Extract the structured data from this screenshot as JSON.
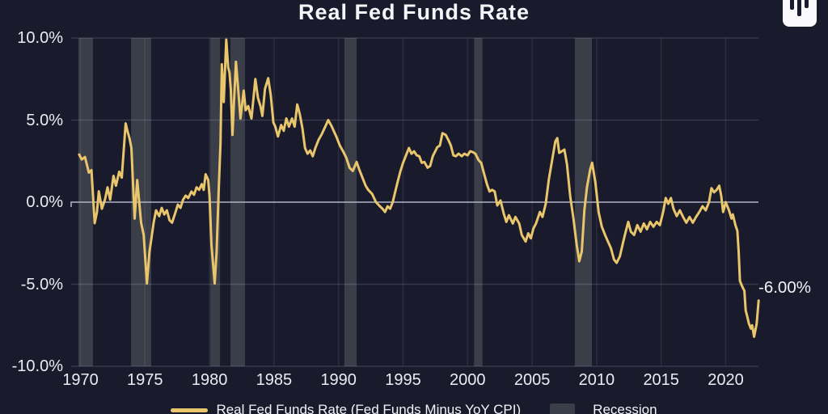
{
  "title": "Real Fed Funds Rate",
  "logo_icon": "bar-waveform-logo-icon",
  "colors": {
    "background": "#191B2C",
    "line": "#E9C66B",
    "recession": "#3A3E49",
    "zero_line": "#A9AEC0",
    "grid_horizontal": "rgba(205,210,230,0.17)",
    "grid_vertical": "rgba(205,210,230,0.10)",
    "text_primary": "#F4F5F8",
    "text_axis": "#EAECF2"
  },
  "legend": [
    {
      "label": "Real Fed Funds Rate (Fed Funds Minus YoY CPI)",
      "swatch": "line",
      "color": "#E9C66B"
    },
    {
      "label": "Recession",
      "swatch": "box",
      "color": "#3A3E49"
    }
  ],
  "chart_data": {
    "type": "line",
    "title": "Real Fed Funds Rate",
    "xlabel": "",
    "ylabel": "",
    "grid": true,
    "legend_position": "bottom",
    "xlim": [
      1969.3,
      2022.6
    ],
    "ylim": [
      -10,
      10
    ],
    "x_ticks": [
      "1970",
      "1975",
      "1980",
      "1985",
      "1990",
      "1995",
      "2000",
      "2005",
      "2010",
      "2015",
      "2020"
    ],
    "x_tick_years": [
      1970,
      1975,
      1980,
      1985,
      1990,
      1995,
      2000,
      2005,
      2010,
      2015,
      2020
    ],
    "y_ticks": [
      "10.0%",
      "5.0%",
      "0.0%",
      "-5.0%",
      "-10.0%"
    ],
    "y_tick_values": [
      10,
      5,
      0,
      -5,
      -10
    ],
    "last_value": -6.0,
    "last_value_label": "-6.00%",
    "recessions": [
      [
        1969.84,
        1970.97
      ],
      [
        1973.92,
        1975.48
      ],
      [
        1980.06,
        1980.81
      ],
      [
        1981.62,
        1982.75
      ],
      [
        1990.45,
        1991.4
      ],
      [
        2000.5,
        2001.15
      ],
      [
        2008.31,
        2009.63
      ]
    ],
    "series": [
      {
        "name": "Real Fed Funds Rate (Fed Funds Minus YoY CPI)",
        "color": "#E9C66B",
        "points": [
          [
            1969.9,
            2.9
          ],
          [
            1970.1,
            2.6
          ],
          [
            1970.35,
            2.75
          ],
          [
            1970.65,
            1.8
          ],
          [
            1970.85,
            1.95
          ],
          [
            1971.1,
            -1.28
          ],
          [
            1971.28,
            -0.6
          ],
          [
            1971.42,
            0.66
          ],
          [
            1971.66,
            -0.4
          ],
          [
            1971.9,
            0.15
          ],
          [
            1972.1,
            0.9
          ],
          [
            1972.3,
            0.15
          ],
          [
            1972.56,
            1.6
          ],
          [
            1972.75,
            1.0
          ],
          [
            1973.0,
            1.85
          ],
          [
            1973.2,
            1.5
          ],
          [
            1973.5,
            4.8
          ],
          [
            1973.65,
            4.3
          ],
          [
            1973.8,
            3.9
          ],
          [
            1973.95,
            3.3
          ],
          [
            1974.2,
            -1.0
          ],
          [
            1974.4,
            1.35
          ],
          [
            1974.7,
            -1.25
          ],
          [
            1974.9,
            -2.0
          ],
          [
            1975.15,
            -4.95
          ],
          [
            1975.35,
            -3.0
          ],
          [
            1975.5,
            -2.2
          ],
          [
            1975.67,
            -1.25
          ],
          [
            1975.86,
            -0.5
          ],
          [
            1976.1,
            -0.85
          ],
          [
            1976.3,
            -0.35
          ],
          [
            1976.5,
            -0.75
          ],
          [
            1976.7,
            -0.5
          ],
          [
            1976.9,
            -1.1
          ],
          [
            1977.1,
            -1.25
          ],
          [
            1977.35,
            -0.65
          ],
          [
            1977.55,
            -0.15
          ],
          [
            1977.75,
            -0.35
          ],
          [
            1977.95,
            0.15
          ],
          [
            1978.15,
            0.4
          ],
          [
            1978.35,
            0.25
          ],
          [
            1978.6,
            0.65
          ],
          [
            1978.8,
            0.45
          ],
          [
            1979.0,
            0.9
          ],
          [
            1979.2,
            0.75
          ],
          [
            1979.4,
            1.1
          ],
          [
            1979.55,
            0.75
          ],
          [
            1979.7,
            1.7
          ],
          [
            1979.9,
            1.35
          ],
          [
            1980.0,
            0.4
          ],
          [
            1980.15,
            -2.6
          ],
          [
            1980.4,
            -4.95
          ],
          [
            1980.55,
            -3.0
          ],
          [
            1980.7,
            0.5
          ],
          [
            1980.85,
            3.6
          ],
          [
            1980.95,
            8.4
          ],
          [
            1981.1,
            6.1
          ],
          [
            1981.3,
            9.9
          ],
          [
            1981.45,
            8.2
          ],
          [
            1981.55,
            7.9
          ],
          [
            1981.65,
            6.9
          ],
          [
            1981.78,
            4.1
          ],
          [
            1981.9,
            6.1
          ],
          [
            1982.05,
            8.55
          ],
          [
            1982.2,
            7.1
          ],
          [
            1982.4,
            5.1
          ],
          [
            1982.65,
            6.8
          ],
          [
            1982.8,
            5.6
          ],
          [
            1983.0,
            5.85
          ],
          [
            1983.25,
            5.1
          ],
          [
            1983.55,
            7.5
          ],
          [
            1983.75,
            6.35
          ],
          [
            1983.95,
            5.85
          ],
          [
            1984.1,
            5.25
          ],
          [
            1984.3,
            6.9
          ],
          [
            1984.55,
            7.55
          ],
          [
            1984.75,
            6.5
          ],
          [
            1984.95,
            4.85
          ],
          [
            1985.1,
            4.6
          ],
          [
            1985.3,
            4.0
          ],
          [
            1985.55,
            4.7
          ],
          [
            1985.75,
            4.35
          ],
          [
            1985.95,
            5.1
          ],
          [
            1986.15,
            4.6
          ],
          [
            1986.4,
            5.1
          ],
          [
            1986.6,
            4.6
          ],
          [
            1986.8,
            5.95
          ],
          [
            1987.0,
            5.35
          ],
          [
            1987.2,
            4.5
          ],
          [
            1987.4,
            3.3
          ],
          [
            1987.6,
            2.95
          ],
          [
            1987.8,
            3.15
          ],
          [
            1988.0,
            2.8
          ],
          [
            1988.2,
            3.3
          ],
          [
            1988.45,
            3.8
          ],
          [
            1988.7,
            4.15
          ],
          [
            1989.0,
            4.65
          ],
          [
            1989.2,
            5.0
          ],
          [
            1989.45,
            4.65
          ],
          [
            1989.65,
            4.3
          ],
          [
            1989.85,
            3.95
          ],
          [
            1990.1,
            3.45
          ],
          [
            1990.35,
            3.1
          ],
          [
            1990.6,
            2.7
          ],
          [
            1990.85,
            2.1
          ],
          [
            1991.1,
            1.9
          ],
          [
            1991.4,
            2.45
          ],
          [
            1991.6,
            2.0
          ],
          [
            1991.85,
            1.5
          ],
          [
            1992.1,
            1.0
          ],
          [
            1992.3,
            0.75
          ],
          [
            1992.6,
            0.5
          ],
          [
            1992.9,
            0.0
          ],
          [
            1993.2,
            -0.25
          ],
          [
            1993.4,
            -0.4
          ],
          [
            1993.6,
            -0.6
          ],
          [
            1993.8,
            -0.25
          ],
          [
            1994.0,
            -0.4
          ],
          [
            1994.2,
            0.0
          ],
          [
            1994.4,
            0.66
          ],
          [
            1994.6,
            1.3
          ],
          [
            1994.8,
            1.9
          ],
          [
            1995.0,
            2.4
          ],
          [
            1995.2,
            2.8
          ],
          [
            1995.45,
            3.3
          ],
          [
            1995.65,
            2.95
          ],
          [
            1995.85,
            3.1
          ],
          [
            1996.05,
            2.85
          ],
          [
            1996.25,
            2.8
          ],
          [
            1996.45,
            2.4
          ],
          [
            1996.65,
            2.45
          ],
          [
            1996.9,
            2.1
          ],
          [
            1997.1,
            2.2
          ],
          [
            1997.3,
            2.8
          ],
          [
            1997.65,
            3.35
          ],
          [
            1997.85,
            3.45
          ],
          [
            1998.05,
            4.2
          ],
          [
            1998.3,
            4.1
          ],
          [
            1998.5,
            3.8
          ],
          [
            1998.7,
            3.45
          ],
          [
            1998.9,
            2.85
          ],
          [
            1999.1,
            2.8
          ],
          [
            1999.3,
            2.95
          ],
          [
            1999.55,
            2.8
          ],
          [
            1999.75,
            2.95
          ],
          [
            2000.0,
            2.85
          ],
          [
            2000.2,
            3.1
          ],
          [
            2000.4,
            3.05
          ],
          [
            2000.6,
            2.95
          ],
          [
            2000.85,
            2.55
          ],
          [
            2001.05,
            2.4
          ],
          [
            2001.25,
            1.8
          ],
          [
            2001.5,
            1.1
          ],
          [
            2001.7,
            0.65
          ],
          [
            2001.9,
            0.75
          ],
          [
            2002.1,
            0.65
          ],
          [
            2002.3,
            -0.2
          ],
          [
            2002.55,
            0.1
          ],
          [
            2002.8,
            -0.7
          ],
          [
            2003.0,
            -1.2
          ],
          [
            2003.2,
            -0.8
          ],
          [
            2003.5,
            -1.3
          ],
          [
            2003.7,
            -0.9
          ],
          [
            2004.0,
            -1.3
          ],
          [
            2004.2,
            -2.0
          ],
          [
            2004.5,
            -2.4
          ],
          [
            2004.7,
            -1.9
          ],
          [
            2004.9,
            -2.2
          ],
          [
            2005.1,
            -1.6
          ],
          [
            2005.3,
            -1.3
          ],
          [
            2005.6,
            -0.6
          ],
          [
            2005.8,
            -0.9
          ],
          [
            2006.05,
            -0.1
          ],
          [
            2006.3,
            1.4
          ],
          [
            2006.55,
            2.55
          ],
          [
            2006.8,
            3.7
          ],
          [
            2006.95,
            3.9
          ],
          [
            2007.1,
            3.0
          ],
          [
            2007.3,
            3.1
          ],
          [
            2007.5,
            3.2
          ],
          [
            2007.7,
            2.3
          ],
          [
            2007.95,
            0.35
          ],
          [
            2008.2,
            -1.0
          ],
          [
            2008.45,
            -2.6
          ],
          [
            2008.65,
            -3.6
          ],
          [
            2008.85,
            -3.0
          ],
          [
            2009.05,
            -0.5
          ],
          [
            2009.25,
            0.9
          ],
          [
            2009.5,
            2.0
          ],
          [
            2009.65,
            2.4
          ],
          [
            2009.9,
            1.2
          ],
          [
            2010.15,
            -0.6
          ],
          [
            2010.4,
            -1.5
          ],
          [
            2010.65,
            -2.0
          ],
          [
            2010.9,
            -2.45
          ],
          [
            2011.1,
            -2.8
          ],
          [
            2011.35,
            -3.5
          ],
          [
            2011.55,
            -3.7
          ],
          [
            2011.8,
            -3.3
          ],
          [
            2012.05,
            -2.45
          ],
          [
            2012.25,
            -1.8
          ],
          [
            2012.45,
            -1.2
          ],
          [
            2012.65,
            -1.8
          ],
          [
            2012.9,
            -2.0
          ],
          [
            2013.15,
            -1.4
          ],
          [
            2013.4,
            -1.8
          ],
          [
            2013.65,
            -1.3
          ],
          [
            2013.9,
            -1.65
          ],
          [
            2014.15,
            -1.2
          ],
          [
            2014.4,
            -1.5
          ],
          [
            2014.65,
            -1.2
          ],
          [
            2014.9,
            -1.4
          ],
          [
            2015.15,
            -0.6
          ],
          [
            2015.35,
            0.25
          ],
          [
            2015.55,
            -0.1
          ],
          [
            2015.75,
            0.25
          ],
          [
            2015.95,
            -0.4
          ],
          [
            2016.2,
            -0.85
          ],
          [
            2016.45,
            -0.5
          ],
          [
            2016.7,
            -0.9
          ],
          [
            2016.95,
            -1.25
          ],
          [
            2017.2,
            -0.9
          ],
          [
            2017.45,
            -1.25
          ],
          [
            2017.7,
            -0.9
          ],
          [
            2017.95,
            -0.6
          ],
          [
            2018.2,
            -0.25
          ],
          [
            2018.45,
            -0.5
          ],
          [
            2018.7,
            0.0
          ],
          [
            2018.9,
            0.85
          ],
          [
            2019.1,
            0.6
          ],
          [
            2019.3,
            0.75
          ],
          [
            2019.5,
            1.0
          ],
          [
            2019.65,
            0.4
          ],
          [
            2019.8,
            -0.6
          ],
          [
            2020.0,
            0.0
          ],
          [
            2020.25,
            -0.5
          ],
          [
            2020.45,
            -1.0
          ],
          [
            2020.55,
            -0.75
          ],
          [
            2020.75,
            -1.4
          ],
          [
            2020.9,
            -1.75
          ],
          [
            2021.0,
            -3.0
          ],
          [
            2021.1,
            -4.8
          ],
          [
            2021.2,
            -5.0
          ],
          [
            2021.35,
            -5.25
          ],
          [
            2021.45,
            -5.4
          ],
          [
            2021.55,
            -6.6
          ],
          [
            2021.65,
            -6.9
          ],
          [
            2021.8,
            -7.4
          ],
          [
            2021.95,
            -7.7
          ],
          [
            2022.05,
            -7.5
          ],
          [
            2022.2,
            -8.2
          ],
          [
            2022.4,
            -7.4
          ],
          [
            2022.55,
            -6.0
          ]
        ]
      }
    ]
  }
}
